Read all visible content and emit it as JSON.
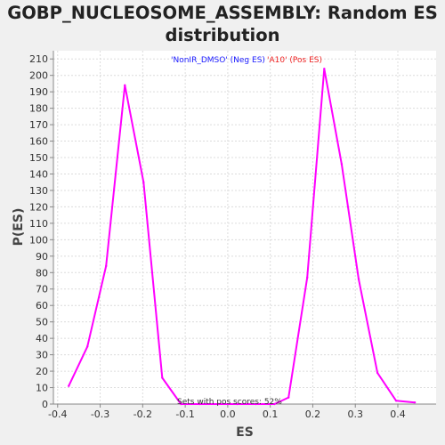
{
  "chart_data": {
    "type": "line",
    "title_line1": "GOBP_NUCLEOSOME_ASSEMBLY: Random ES",
    "title_line2": "distribution",
    "xlabel": "ES",
    "ylabel": "P(ES)",
    "xlim": [
      -0.41,
      0.49
    ],
    "ylim": [
      0,
      215
    ],
    "x_ticks": [
      -0.4,
      -0.3,
      -0.2,
      -0.1,
      0.0,
      0.1,
      0.2,
      0.3,
      0.4
    ],
    "x_tick_labels": [
      "-0.4",
      "-0.3",
      "-0.2",
      "-0.1",
      "0.0",
      "0.1",
      "0.2",
      "0.3",
      "0.4"
    ],
    "y_ticks": [
      0,
      10,
      20,
      30,
      40,
      50,
      60,
      70,
      80,
      90,
      100,
      110,
      120,
      130,
      140,
      150,
      160,
      170,
      180,
      190,
      200,
      210
    ],
    "y_tick_labels": [
      "0",
      "10",
      "20",
      "30",
      "40",
      "50",
      "60",
      "70",
      "80",
      "90",
      "100",
      "110",
      "120",
      "130",
      "140",
      "150",
      "160",
      "170",
      "180",
      "190",
      "200",
      "210"
    ],
    "grid": true,
    "line_color": "#ff00ff",
    "legend": [
      {
        "label": "'NonIR_DMSO' (Neg ES)",
        "color": "#1a1aff"
      },
      {
        "label": "'A10' (Pos ES)",
        "color": "#ee2222"
      }
    ],
    "annotation": "Sets with pos scores: 52%",
    "series": [
      {
        "x": [
          -0.374,
          -0.33,
          -0.286,
          -0.242,
          -0.198,
          -0.154,
          -0.11,
          -0.066,
          -0.022,
          0.022,
          0.066,
          0.11,
          0.143,
          0.187,
          0.227,
          0.268,
          0.308,
          0.352,
          0.396,
          0.44
        ],
        "y": [
          11,
          35,
          84,
          194,
          135,
          16,
          0,
          0,
          0,
          0,
          0,
          0,
          4,
          77,
          204,
          146,
          76,
          19,
          2,
          1
        ]
      }
    ]
  }
}
